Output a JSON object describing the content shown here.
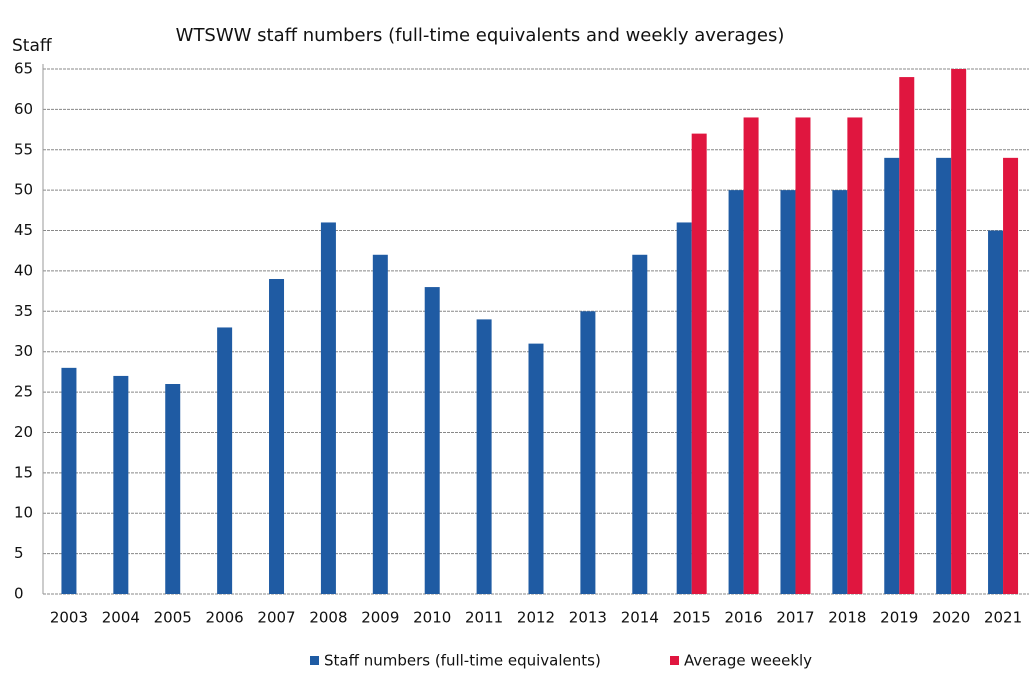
{
  "chart_data": {
    "type": "bar",
    "title": "WTSWW staff numbers (full-time equivalents and weekly averages)",
    "y_label": "Staff",
    "categories": [
      "2003",
      "2004",
      "2005",
      "2006",
      "2007",
      "2008",
      "2009",
      "2010",
      "2011",
      "2012",
      "2013",
      "2014",
      "2015",
      "2016",
      "2017",
      "2018",
      "2019",
      "2020",
      "2021"
    ],
    "series": [
      {
        "name": "Staff numbers (full-time equivalents)",
        "color": "#1f5ba3",
        "values": [
          28,
          27,
          26,
          33,
          39,
          46,
          42,
          38,
          34,
          31,
          35,
          42,
          46,
          50,
          50,
          50,
          54,
          54,
          45
        ]
      },
      {
        "name": "Average weeekly",
        "color": "#e0163f",
        "values": [
          null,
          null,
          null,
          null,
          null,
          null,
          null,
          null,
          null,
          null,
          null,
          null,
          57,
          59,
          59,
          59,
          64,
          65,
          54
        ]
      }
    ],
    "ylim": [
      0,
      65
    ],
    "yticks": [
      0,
      5,
      10,
      15,
      20,
      25,
      30,
      35,
      40,
      45,
      50,
      55,
      60,
      65
    ],
    "grid": true,
    "legend": "bottom"
  }
}
